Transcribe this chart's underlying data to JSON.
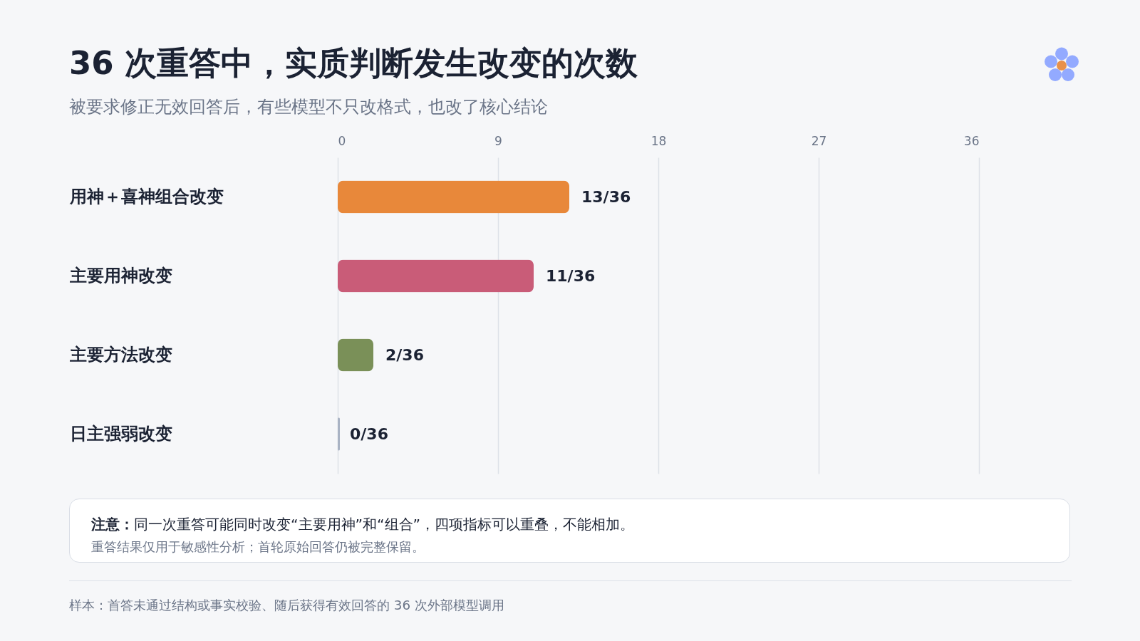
{
  "chart_data": {
    "type": "bar",
    "orientation": "horizontal",
    "title": "36 次重答中，实质判断发生改变的次数",
    "subtitle": "被要求修正无效回答后，有些模型不只改格式，也改了核心结论",
    "categories": [
      "用神＋喜神组合改变",
      "主要用神改变",
      "主要方法改变",
      "日主强弱改变"
    ],
    "values": [
      13,
      11,
      2,
      0
    ],
    "colors": [
      "#e8883a",
      "#c95c78",
      "#7a9058",
      "#a9b3c4"
    ],
    "value_labels": [
      "13/36",
      "11/36",
      "2/36",
      "0/36"
    ],
    "xlim": [
      0,
      36
    ],
    "xticks": [
      0,
      9,
      18,
      27,
      36
    ],
    "grid": "x",
    "annotations": [
      "注意：",
      "同一次重答可能同时改变“主要用神”和“组合”，四项指标可以重叠，不能相加。",
      "重答结果仅用于敏感性分析；首轮原始回答仍被完整保留。",
      "样本：首答未通过结构或事实校验、随后获得有效回答的 36 次外部模型调用"
    ]
  }
}
